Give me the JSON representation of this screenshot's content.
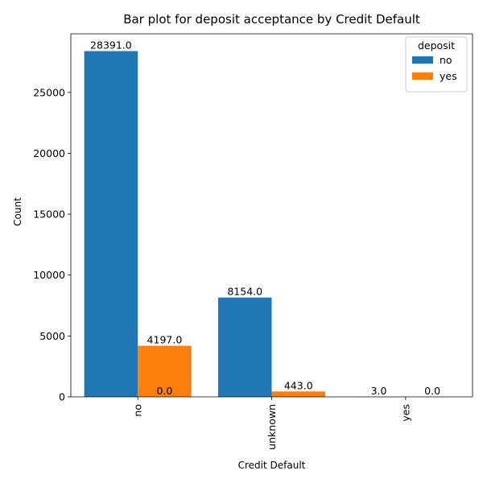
{
  "chart_data": {
    "type": "bar",
    "title": "Bar plot for deposit acceptance by Credit Default",
    "xlabel": "Credit Default",
    "ylabel": "Count",
    "categories": [
      "no",
      "unknown",
      "yes"
    ],
    "ylim": [
      0,
      29810.55
    ],
    "yticks": [
      0,
      5000,
      10000,
      15000,
      20000,
      25000
    ],
    "grid": false,
    "legend": {
      "title": "deposit",
      "placement": "top-right"
    },
    "series": [
      {
        "name": "no",
        "color": "#1f77b4",
        "values": [
          28391,
          8154,
          3
        ]
      },
      {
        "name": "yes",
        "color": "#ff7f0e",
        "values": [
          4197,
          443,
          0
        ]
      }
    ],
    "bar_labels": [
      {
        "series": 0,
        "category": 0,
        "text": "28391.0"
      },
      {
        "series": 0,
        "category": 1,
        "text": "8154.0"
      },
      {
        "series": 0,
        "category": 2,
        "text": "3.0"
      },
      {
        "series": 1,
        "category": 0,
        "text": "4197.0"
      },
      {
        "series": 1,
        "category": 1,
        "text": "443.0"
      },
      {
        "series": 1,
        "category": 2,
        "text": "0.0"
      }
    ],
    "extra_labels": [
      {
        "category": 0,
        "text": "0.0"
      }
    ]
  }
}
